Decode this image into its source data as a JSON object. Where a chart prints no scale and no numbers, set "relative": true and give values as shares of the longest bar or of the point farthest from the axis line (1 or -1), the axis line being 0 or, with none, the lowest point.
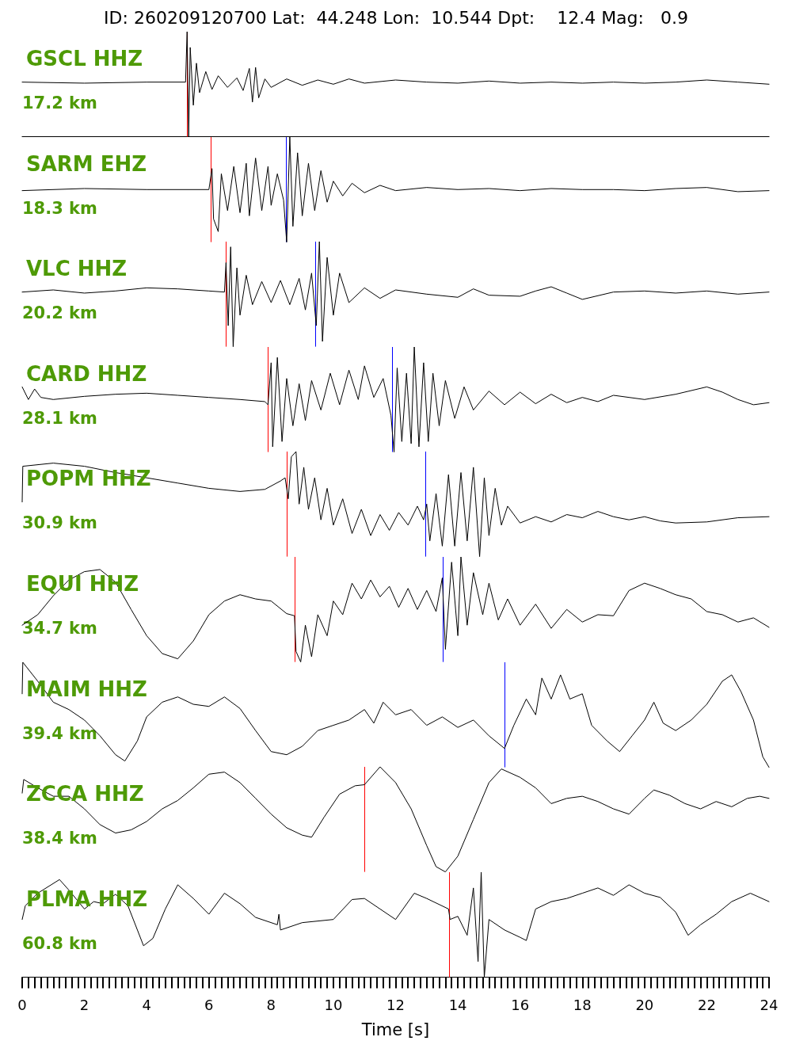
{
  "chart_data": [
    {
      "type": "line",
      "title": "ID: 260209120700 Lat:  44.248 Lon:  10.544 Dpt:    12.4 Mag:   0.9",
      "subtitle": "GSCL HHZ",
      "annotations": [
        "17.2 km"
      ],
      "relative": true,
      "color": "#000000",
      "xlim": [
        0,
        24
      ],
      "tick_labels": false,
      "x": [
        0,
        2,
        4,
        5.25,
        5.3,
        5.35,
        5.4,
        5.5,
        5.6,
        5.7,
        5.9,
        6.1,
        6.3,
        6.6,
        6.9,
        7.1,
        7.3,
        7.4,
        7.5,
        7.6,
        7.8,
        8,
        8.5,
        9,
        9.5,
        10,
        10.5,
        11,
        12,
        13,
        14,
        15,
        16,
        17,
        18,
        19,
        20,
        21,
        22,
        23,
        24
      ],
      "values": [
        0.52,
        0.51,
        0.52,
        0.52,
        1,
        0,
        0.85,
        0.3,
        0.7,
        0.42,
        0.62,
        0.45,
        0.58,
        0.47,
        0.56,
        0.44,
        0.65,
        0.33,
        0.66,
        0.37,
        0.55,
        0.47,
        0.55,
        0.49,
        0.54,
        0.5,
        0.55,
        0.51,
        0.54,
        0.52,
        0.51,
        0.53,
        0.51,
        0.52,
        0.51,
        0.52,
        0.51,
        0.52,
        0.54,
        0.52,
        0.5
      ],
      "ref_lines": [
        {
          "axis": "x",
          "value": 5.3,
          "color": "#ff0000"
        }
      ]
    },
    {
      "type": "line",
      "subtitle": "SARM EHZ",
      "annotations": [
        "18.3 km"
      ],
      "relative": true,
      "color": "#000000",
      "xlim": [
        0,
        24
      ],
      "tick_labels": false,
      "x": [
        0,
        2,
        4,
        6,
        6.1,
        6.15,
        6.3,
        6.4,
        6.6,
        6.8,
        7,
        7.2,
        7.3,
        7.5,
        7.7,
        7.9,
        8,
        8.2,
        8.4,
        8.5,
        8.6,
        8.7,
        8.85,
        9,
        9.2,
        9.4,
        9.6,
        9.8,
        10,
        10.3,
        10.6,
        11,
        11.5,
        12,
        13,
        14,
        15,
        16,
        17,
        18,
        19,
        20,
        21,
        22,
        23,
        24
      ],
      "values": [
        0.49,
        0.51,
        0.5,
        0.5,
        0.7,
        0.22,
        0.1,
        0.65,
        0.3,
        0.72,
        0.28,
        0.75,
        0.25,
        0.8,
        0.3,
        0.72,
        0.35,
        0.65,
        0.4,
        0,
        1,
        0.15,
        0.85,
        0.25,
        0.75,
        0.3,
        0.68,
        0.38,
        0.58,
        0.44,
        0.56,
        0.47,
        0.54,
        0.49,
        0.52,
        0.5,
        0.51,
        0.49,
        0.51,
        0.5,
        0.5,
        0.49,
        0.51,
        0.52,
        0.48,
        0.49
      ],
      "ref_lines": [
        {
          "axis": "x",
          "value": 6.06,
          "color": "#ff0000"
        },
        {
          "axis": "x",
          "value": 8.47,
          "color": "#0000ff"
        }
      ]
    },
    {
      "type": "line",
      "subtitle": "VLC HHZ",
      "annotations": [
        "20.2 km"
      ],
      "relative": true,
      "color": "#000000",
      "xlim": [
        0,
        24
      ],
      "tick_labels": false,
      "x": [
        0,
        1,
        2,
        3,
        4,
        5,
        6,
        6.5,
        6.55,
        6.62,
        6.7,
        6.78,
        6.9,
        7,
        7.2,
        7.4,
        7.7,
        8,
        8.3,
        8.6,
        8.9,
        9.1,
        9.3,
        9.45,
        9.55,
        9.65,
        9.8,
        10,
        10.2,
        10.5,
        11,
        11.5,
        12,
        13,
        14,
        14.5,
        15,
        16,
        16.5,
        17,
        17.5,
        18,
        19,
        20,
        21,
        22,
        23,
        24
      ],
      "values": [
        0.52,
        0.54,
        0.51,
        0.53,
        0.56,
        0.55,
        0.53,
        0.52,
        0.8,
        0.2,
        0.95,
        0,
        0.75,
        0.3,
        0.68,
        0.4,
        0.62,
        0.42,
        0.63,
        0.4,
        0.65,
        0.35,
        0.7,
        0.2,
        1,
        0.05,
        0.85,
        0.3,
        0.7,
        0.42,
        0.56,
        0.46,
        0.54,
        0.5,
        0.47,
        0.55,
        0.49,
        0.48,
        0.53,
        0.57,
        0.51,
        0.45,
        0.52,
        0.53,
        0.51,
        0.53,
        0.5,
        0.52
      ],
      "ref_lines": [
        {
          "axis": "x",
          "value": 6.54,
          "color": "#ff0000"
        },
        {
          "axis": "x",
          "value": 9.42,
          "color": "#0000ff"
        }
      ]
    },
    {
      "type": "line",
      "subtitle": "CARD HHZ",
      "annotations": [
        "28.1 km"
      ],
      "relative": true,
      "color": "#000000",
      "xlim": [
        0,
        24
      ],
      "tick_labels": false,
      "x": [
        0,
        0.2,
        0.4,
        0.6,
        1,
        2,
        3,
        4,
        5,
        6,
        7,
        7.8,
        7.9,
        8,
        8.05,
        8.2,
        8.35,
        8.5,
        8.7,
        8.9,
        9.1,
        9.3,
        9.6,
        9.9,
        10.2,
        10.5,
        10.8,
        11,
        11.3,
        11.6,
        11.85,
        11.95,
        12.05,
        12.2,
        12.35,
        12.5,
        12.6,
        12.75,
        12.9,
        13.05,
        13.2,
        13.4,
        13.6,
        13.9,
        14.2,
        14.5,
        15,
        15.5,
        16,
        16.5,
        17,
        17.5,
        18,
        18.5,
        19,
        20,
        21,
        22,
        22.5,
        23,
        23.5,
        24
      ],
      "values": [
        0.62,
        0.5,
        0.6,
        0.52,
        0.5,
        0.53,
        0.55,
        0.56,
        0.54,
        0.52,
        0.5,
        0.48,
        0.45,
        0.85,
        0.05,
        0.9,
        0.1,
        0.7,
        0.25,
        0.65,
        0.3,
        0.68,
        0.4,
        0.75,
        0.45,
        0.78,
        0.5,
        0.82,
        0.52,
        0.7,
        0.35,
        0,
        0.8,
        0.1,
        0.75,
        0.08,
        1,
        0.05,
        0.85,
        0.1,
        0.75,
        0.25,
        0.68,
        0.32,
        0.62,
        0.4,
        0.58,
        0.45,
        0.57,
        0.46,
        0.55,
        0.47,
        0.52,
        0.48,
        0.54,
        0.5,
        0.55,
        0.62,
        0.57,
        0.5,
        0.45,
        0.47
      ],
      "ref_lines": [
        {
          "axis": "x",
          "value": 7.89,
          "color": "#ff0000"
        },
        {
          "axis": "x",
          "value": 11.89,
          "color": "#0000ff"
        }
      ]
    },
    {
      "type": "line",
      "subtitle": "POPM HHZ",
      "annotations": [
        "30.9 km"
      ],
      "relative": true,
      "color": "#000000",
      "xlim": [
        0,
        24
      ],
      "tick_labels": false,
      "x": [
        0,
        0.02,
        1,
        2,
        3,
        4,
        5,
        6,
        7,
        7.8,
        8.3,
        8.45,
        8.55,
        8.65,
        8.8,
        8.9,
        9.05,
        9.2,
        9.4,
        9.6,
        9.8,
        10,
        10.3,
        10.6,
        10.9,
        11.2,
        11.5,
        11.8,
        12.1,
        12.4,
        12.7,
        12.9,
        13,
        13.1,
        13.3,
        13.5,
        13.7,
        13.9,
        14.1,
        14.3,
        14.5,
        14.7,
        14.85,
        15,
        15.2,
        15.4,
        15.6,
        16,
        16.5,
        17,
        17.5,
        18,
        18.5,
        19,
        19.5,
        20,
        20.5,
        21,
        22,
        23,
        24
      ],
      "values": [
        0.52,
        0.86,
        0.89,
        0.86,
        0.8,
        0.75,
        0.7,
        0.65,
        0.62,
        0.64,
        0.72,
        0.75,
        0.55,
        0.95,
        1,
        0.5,
        0.85,
        0.45,
        0.75,
        0.35,
        0.65,
        0.3,
        0.55,
        0.22,
        0.45,
        0.2,
        0.4,
        0.25,
        0.42,
        0.3,
        0.48,
        0.35,
        0.5,
        0.15,
        0.6,
        0.1,
        0.78,
        0.1,
        0.8,
        0.15,
        0.85,
        0,
        0.75,
        0.2,
        0.65,
        0.3,
        0.48,
        0.32,
        0.38,
        0.33,
        0.4,
        0.37,
        0.43,
        0.38,
        0.35,
        0.38,
        0.34,
        0.32,
        0.33,
        0.37,
        0.38
      ],
      "ref_lines": [
        {
          "axis": "x",
          "value": 8.5,
          "color": "#ff0000"
        },
        {
          "axis": "x",
          "value": 12.95,
          "color": "#0000ff"
        }
      ]
    },
    {
      "type": "line",
      "subtitle": "EQUI HHZ",
      "annotations": [
        "34.7 km"
      ],
      "relative": true,
      "color": "#000000",
      "xlim": [
        0,
        24
      ],
      "tick_labels": false,
      "x": [
        0,
        0.5,
        1,
        1.5,
        2,
        2.5,
        3,
        3.5,
        4,
        4.5,
        5,
        5.5,
        6,
        6.5,
        7,
        7.5,
        8,
        8.5,
        8.75,
        8.8,
        8.95,
        9.1,
        9.3,
        9.5,
        9.8,
        10,
        10.3,
        10.6,
        10.9,
        11.2,
        11.5,
        11.8,
        12.1,
        12.4,
        12.7,
        13,
        13.3,
        13.5,
        13.6,
        13.8,
        14,
        14.1,
        14.3,
        14.5,
        14.8,
        15,
        15.3,
        15.6,
        16,
        16.5,
        17,
        17.5,
        18,
        18.5,
        19,
        19.5,
        20,
        20.5,
        21,
        21.5,
        22,
        22.5,
        23,
        23.5,
        24
      ],
      "values": [
        0.35,
        0.45,
        0.63,
        0.78,
        0.86,
        0.88,
        0.76,
        0.5,
        0.25,
        0.08,
        0.03,
        0.2,
        0.45,
        0.58,
        0.64,
        0.6,
        0.58,
        0.46,
        0.44,
        0.1,
        0,
        0.35,
        0.05,
        0.45,
        0.25,
        0.58,
        0.45,
        0.75,
        0.6,
        0.78,
        0.62,
        0.72,
        0.52,
        0.7,
        0.5,
        0.68,
        0.48,
        0.8,
        0.12,
        0.95,
        0.25,
        1,
        0.35,
        0.85,
        0.45,
        0.75,
        0.4,
        0.6,
        0.35,
        0.55,
        0.32,
        0.5,
        0.38,
        0.45,
        0.44,
        0.68,
        0.75,
        0.7,
        0.64,
        0.6,
        0.48,
        0.45,
        0.38,
        0.42,
        0.33
      ],
      "ref_lines": [
        {
          "axis": "x",
          "value": 8.76,
          "color": "#ff0000"
        },
        {
          "axis": "x",
          "value": 13.51,
          "color": "#0000ff"
        }
      ]
    },
    {
      "type": "line",
      "subtitle": "MAIM HHZ",
      "annotations": [
        "39.4 km"
      ],
      "relative": true,
      "color": "#000000",
      "xlim": [
        0,
        24
      ],
      "tick_labels": false,
      "x": [
        0,
        0.02,
        0.5,
        1,
        1.5,
        2,
        2.5,
        3,
        3.3,
        3.7,
        4,
        4.5,
        5,
        5.5,
        6,
        6.5,
        7,
        7.5,
        8,
        8.5,
        9,
        9.5,
        10,
        10.5,
        11,
        11.3,
        11.6,
        12,
        12.5,
        13,
        13.5,
        14,
        14.5,
        15,
        15.5,
        15.8,
        16.2,
        16.5,
        16.7,
        17,
        17.3,
        17.6,
        18,
        18.3,
        18.8,
        19.2,
        19.6,
        20,
        20.3,
        20.6,
        21,
        21.5,
        22,
        22.5,
        22.8,
        23.1,
        23.5,
        23.8,
        24
      ],
      "values": [
        0.7,
        1,
        0.82,
        0.62,
        0.55,
        0.45,
        0.3,
        0.12,
        0.06,
        0.25,
        0.48,
        0.62,
        0.67,
        0.6,
        0.58,
        0.67,
        0.56,
        0.35,
        0.15,
        0.12,
        0.2,
        0.35,
        0.4,
        0.45,
        0.55,
        0.42,
        0.62,
        0.5,
        0.55,
        0.4,
        0.48,
        0.38,
        0.45,
        0.3,
        0.18,
        0.4,
        0.65,
        0.5,
        0.85,
        0.65,
        0.88,
        0.65,
        0.7,
        0.4,
        0.25,
        0.15,
        0.3,
        0.45,
        0.62,
        0.42,
        0.35,
        0.45,
        0.6,
        0.82,
        0.88,
        0.72,
        0.45,
        0.1,
        0
      ],
      "ref_lines": [
        {
          "axis": "x",
          "value": 15.5,
          "color": "#0000ff"
        }
      ]
    },
    {
      "type": "line",
      "subtitle": "ZCCA HHZ",
      "annotations": [
        "38.4 km"
      ],
      "relative": true,
      "color": "#000000",
      "xlim": [
        0,
        24
      ],
      "tick_labels": false,
      "x": [
        0,
        0.05,
        0.5,
        1,
        1.5,
        2,
        2.5,
        3,
        3.5,
        4,
        4.5,
        5,
        5.5,
        6,
        6.5,
        7,
        7.5,
        8,
        8.5,
        9,
        9.3,
        9.7,
        10.2,
        10.7,
        11,
        11.5,
        12,
        12.5,
        13,
        13.3,
        13.6,
        14,
        14.5,
        15,
        15.4,
        16,
        16.5,
        17,
        17.5,
        18,
        18.5,
        19,
        19.5,
        20,
        20.3,
        20.8,
        21.3,
        21.8,
        22.3,
        22.8,
        23.3,
        23.7,
        24
      ],
      "values": [
        0.75,
        0.88,
        0.8,
        0.72,
        0.72,
        0.6,
        0.45,
        0.37,
        0.4,
        0.48,
        0.6,
        0.68,
        0.8,
        0.93,
        0.95,
        0.85,
        0.7,
        0.55,
        0.42,
        0.35,
        0.33,
        0.52,
        0.74,
        0.82,
        0.83,
        1,
        0.85,
        0.6,
        0.25,
        0.05,
        0,
        0.15,
        0.5,
        0.85,
        0.98,
        0.9,
        0.8,
        0.65,
        0.7,
        0.72,
        0.67,
        0.6,
        0.55,
        0.7,
        0.78,
        0.73,
        0.65,
        0.6,
        0.67,
        0.62,
        0.7,
        0.72,
        0.7
      ],
      "ref_lines": [
        {
          "axis": "x",
          "value": 10.99,
          "color": "#ff0000"
        }
      ]
    },
    {
      "type": "line",
      "subtitle": "PLMA HHZ",
      "annotations": [
        "60.8 km"
      ],
      "relative": true,
      "color": "#000000",
      "xlim": [
        0,
        24
      ],
      "tick_labels": "x",
      "xlabel": "Time [s]",
      "x": [
        0,
        0.1,
        0.5,
        1.2,
        1.5,
        2,
        2.3,
        2.6,
        3,
        3.4,
        3.9,
        4.2,
        4.6,
        5,
        5.5,
        6,
        6.5,
        7,
        7.5,
        8.2,
        8.25,
        8.3,
        9,
        10,
        10.6,
        11,
        11.5,
        12,
        12.6,
        13,
        13.7,
        13.75,
        14,
        14.3,
        14.5,
        14.65,
        14.75,
        14.85,
        15,
        15.5,
        16,
        16.2,
        16.5,
        17,
        17.5,
        18,
        18.5,
        19,
        19.5,
        20,
        20.5,
        21,
        21.4,
        21.8,
        22.3,
        22.8,
        23.4,
        24
      ],
      "values": [
        0.55,
        0.68,
        0.8,
        0.93,
        0.83,
        0.65,
        0.72,
        0.7,
        0.79,
        0.68,
        0.3,
        0.37,
        0.65,
        0.88,
        0.75,
        0.6,
        0.8,
        0.7,
        0.57,
        0.5,
        0.6,
        0.45,
        0.52,
        0.55,
        0.74,
        0.75,
        0.65,
        0.55,
        0.8,
        0.75,
        0.65,
        0.55,
        0.58,
        0.4,
        0.85,
        0.15,
        1,
        0,
        0.55,
        0.45,
        0.38,
        0.35,
        0.65,
        0.72,
        0.75,
        0.8,
        0.85,
        0.78,
        0.88,
        0.8,
        0.76,
        0.62,
        0.4,
        0.5,
        0.6,
        0.72,
        0.8,
        0.72
      ],
      "ref_lines": [
        {
          "axis": "x",
          "value": 13.72,
          "color": "#ff0000"
        }
      ],
      "xticks": [
        0,
        {
          "value": 0.2,
          "label": null
        },
        {
          "value": 0.4,
          "label": null
        },
        {
          "value": 0.6,
          "label": null
        },
        {
          "value": 0.8,
          "label": null
        },
        {
          "value": 1,
          "label": null
        },
        {
          "value": 1.2,
          "label": null
        },
        {
          "value": 1.4,
          "label": null
        },
        {
          "value": 1.6,
          "label": null
        },
        {
          "value": 1.8,
          "label": null
        },
        2,
        {
          "value": 2.2,
          "label": null
        },
        {
          "value": 2.4,
          "label": null
        },
        {
          "value": 2.6,
          "label": null
        },
        {
          "value": 2.8,
          "label": null
        },
        {
          "value": 3,
          "label": null
        },
        {
          "value": 3.2,
          "label": null
        },
        {
          "value": 3.4,
          "label": null
        },
        {
          "value": 3.6,
          "label": null
        },
        {
          "value": 3.8,
          "label": null
        },
        4,
        {
          "value": 4.2,
          "label": null
        },
        {
          "value": 4.4,
          "label": null
        },
        {
          "value": 4.6,
          "label": null
        },
        {
          "value": 4.8,
          "label": null
        },
        {
          "value": 5,
          "label": null
        },
        {
          "value": 5.2,
          "label": null
        },
        {
          "value": 5.4,
          "label": null
        },
        {
          "value": 5.6,
          "label": null
        },
        {
          "value": 5.8,
          "label": null
        },
        6,
        {
          "value": 6.2,
          "label": null
        },
        {
          "value": 6.4,
          "label": null
        },
        {
          "value": 6.6,
          "label": null
        },
        {
          "value": 6.8,
          "label": null
        },
        {
          "value": 7,
          "label": null
        },
        {
          "value": 7.2,
          "label": null
        },
        {
          "value": 7.4,
          "label": null
        },
        {
          "value": 7.6,
          "label": null
        },
        {
          "value": 7.8,
          "label": null
        },
        8,
        {
          "value": 8.2,
          "label": null
        },
        {
          "value": 8.4,
          "label": null
        },
        {
          "value": 8.6,
          "label": null
        },
        {
          "value": 8.8,
          "label": null
        },
        {
          "value": 9,
          "label": null
        },
        {
          "value": 9.2,
          "label": null
        },
        {
          "value": 9.4,
          "label": null
        },
        {
          "value": 9.6,
          "label": null
        },
        {
          "value": 9.8,
          "label": null
        },
        10,
        {
          "value": 10.2,
          "label": null
        },
        {
          "value": 10.4,
          "label": null
        },
        {
          "value": 10.6,
          "label": null
        },
        {
          "value": 10.8,
          "label": null
        },
        {
          "value": 11,
          "label": null
        },
        {
          "value": 11.2,
          "label": null
        },
        {
          "value": 11.4,
          "label": null
        },
        {
          "value": 11.6,
          "label": null
        },
        {
          "value": 11.8,
          "label": null
        },
        12,
        {
          "value": 12.2,
          "label": null
        },
        {
          "value": 12.4,
          "label": null
        },
        {
          "value": 12.6,
          "label": null
        },
        {
          "value": 12.8,
          "label": null
        },
        {
          "value": 13,
          "label": null
        },
        {
          "value": 13.2,
          "label": null
        },
        {
          "value": 13.4,
          "label": null
        },
        {
          "value": 13.6,
          "label": null
        },
        {
          "value": 13.8,
          "label": null
        },
        14,
        {
          "value": 14.2,
          "label": null
        },
        {
          "value": 14.4,
          "label": null
        },
        {
          "value": 14.6,
          "label": null
        },
        {
          "value": 14.8,
          "label": null
        },
        {
          "value": 15,
          "label": null
        },
        {
          "value": 15.2,
          "label": null
        },
        {
          "value": 15.4,
          "label": null
        },
        {
          "value": 15.6,
          "label": null
        },
        {
          "value": 15.8,
          "label": null
        },
        16,
        {
          "value": 16.2,
          "label": null
        },
        {
          "value": 16.4,
          "label": null
        },
        {
          "value": 16.6,
          "label": null
        },
        {
          "value": 16.8,
          "label": null
        },
        {
          "value": 17,
          "label": null
        },
        {
          "value": 17.2,
          "label": null
        },
        {
          "value": 17.4,
          "label": null
        },
        {
          "value": 17.6,
          "label": null
        },
        {
          "value": 17.8,
          "label": null
        },
        18,
        {
          "value": 18.2,
          "label": null
        },
        {
          "value": 18.4,
          "label": null
        },
        {
          "value": 18.6,
          "label": null
        },
        {
          "value": 18.8,
          "label": null
        },
        {
          "value": 19,
          "label": null
        },
        {
          "value": 19.2,
          "label": null
        },
        {
          "value": 19.4,
          "label": null
        },
        {
          "value": 19.6,
          "label": null
        },
        {
          "value": 19.8,
          "label": null
        },
        20,
        {
          "value": 20.2,
          "label": null
        },
        {
          "value": 20.4,
          "label": null
        },
        {
          "value": 20.6,
          "label": null
        },
        {
          "value": 20.8,
          "label": null
        },
        {
          "value": 21,
          "label": null
        },
        {
          "value": 21.2,
          "label": null
        },
        {
          "value": 21.4,
          "label": null
        },
        {
          "value": 21.6,
          "label": null
        },
        {
          "value": 21.8,
          "label": null
        },
        22,
        {
          "value": 22.2,
          "label": null
        },
        {
          "value": 22.4,
          "label": null
        },
        {
          "value": 22.6,
          "label": null
        },
        {
          "value": 22.8,
          "label": null
        },
        {
          "value": 23,
          "label": null
        },
        {
          "value": 23.2,
          "label": null
        },
        {
          "value": 23.4,
          "label": null
        },
        {
          "value": 23.6,
          "label": null
        },
        {
          "value": 23.8,
          "label": null
        },
        24
      ]
    }
  ]
}
